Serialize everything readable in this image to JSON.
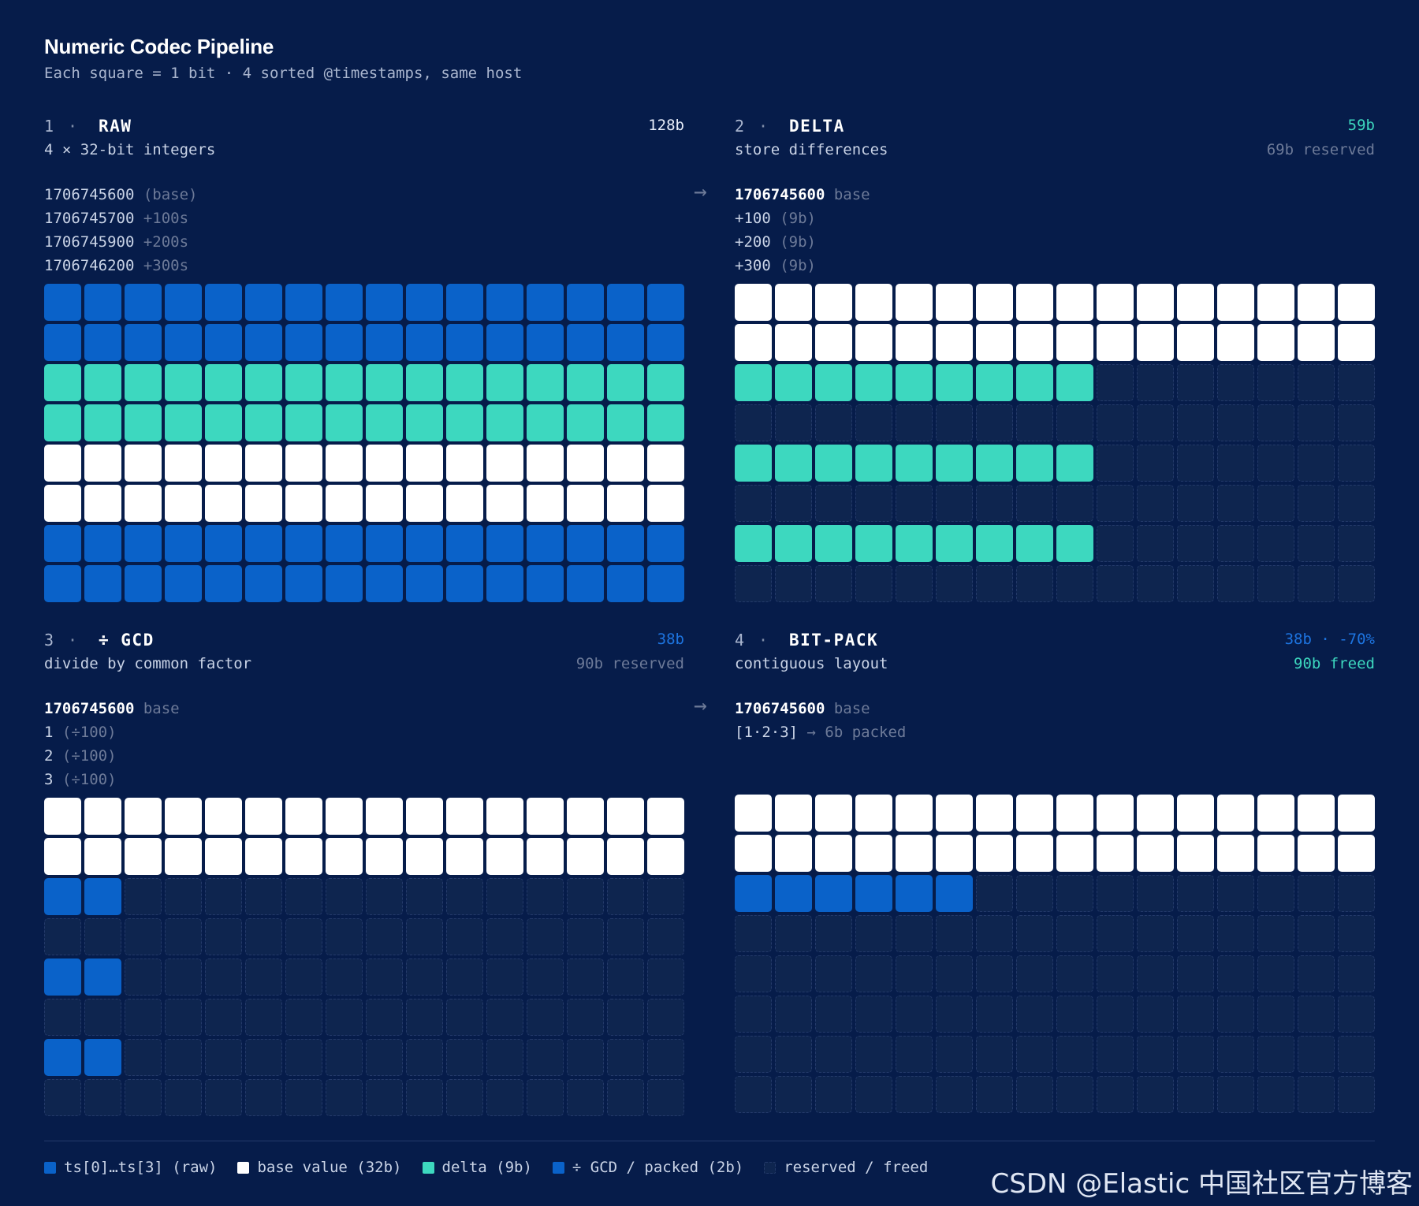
{
  "title": "Numeric Codec Pipeline",
  "subtitle": "Each square = 1 bit · 4 sorted @timestamps, same host",
  "colors": {
    "raw": "#0a62c9",
    "base": "#ffffff",
    "delta": "#3dd8bf",
    "gcd": "#0a62c9",
    "reserved_fill": "#0e254f",
    "reserved_border": "#243a6a",
    "background": "#061c4a"
  },
  "panels": [
    {
      "num": "1",
      "dot": "·",
      "name": "RAW",
      "desc": "4 × 32-bit integers",
      "bits": "128b",
      "bits_color": "#e8eefb",
      "note": "",
      "note_color": "#6d7a98",
      "values": [
        {
          "main": "1706745600",
          "extra": " (base)",
          "style": "v-main"
        },
        {
          "main": "1706745700",
          "extra": " +100s",
          "style": "v-main"
        },
        {
          "main": "1706745900",
          "extra": " +200s",
          "style": "v-main"
        },
        {
          "main": "1706746200",
          "extra": " +300s",
          "style": "v-main"
        }
      ],
      "rows": [
        {
          "kind": "raw",
          "count": 16
        },
        {
          "kind": "raw",
          "count": 16
        },
        {
          "kind": "delta",
          "count": 16
        },
        {
          "kind": "delta",
          "count": 16
        },
        {
          "kind": "base",
          "count": 16
        },
        {
          "kind": "base",
          "count": 16
        },
        {
          "kind": "raw",
          "count": 16
        },
        {
          "kind": "raw",
          "count": 16
        }
      ]
    },
    {
      "num": "2",
      "dot": "·",
      "name": "DELTA",
      "desc": "store differences",
      "bits": "59b",
      "bits_color": "#3dd8bf",
      "note": "69b reserved",
      "note_color": "#6d7a98",
      "values": [
        {
          "main": "1706745600",
          "extra": " base",
          "style": "v-bold"
        },
        {
          "main": "+100",
          "extra": " (9b)",
          "style": "v-main"
        },
        {
          "main": "+200",
          "extra": " (9b)",
          "style": "v-main"
        },
        {
          "main": "+300",
          "extra": " (9b)",
          "style": "v-main"
        }
      ],
      "rows": [
        {
          "kind": "base",
          "count": 16
        },
        {
          "kind": "base",
          "count": 16
        },
        {
          "kind": "delta",
          "count": 9
        },
        {
          "kind": "delta",
          "count": 0
        },
        {
          "kind": "delta",
          "count": 9
        },
        {
          "kind": "delta",
          "count": 0
        },
        {
          "kind": "delta",
          "count": 9
        },
        {
          "kind": "delta",
          "count": 0
        }
      ]
    },
    {
      "num": "3",
      "dot": "·",
      "name": "÷ GCD",
      "desc": "divide by common factor",
      "bits": "38b",
      "bits_color": "#1d74e0",
      "note": "90b reserved",
      "note_color": "#6d7a98",
      "values": [
        {
          "main": "1706745600",
          "extra": " base",
          "style": "v-bold"
        },
        {
          "main": "1",
          "extra": " (÷100)",
          "style": "v-main"
        },
        {
          "main": "2",
          "extra": " (÷100)",
          "style": "v-main"
        },
        {
          "main": "3",
          "extra": " (÷100)",
          "style": "v-main"
        }
      ],
      "rows": [
        {
          "kind": "base",
          "count": 16
        },
        {
          "kind": "base",
          "count": 16
        },
        {
          "kind": "gcd",
          "count": 2
        },
        {
          "kind": "gcd",
          "count": 0
        },
        {
          "kind": "gcd",
          "count": 2
        },
        {
          "kind": "gcd",
          "count": 0
        },
        {
          "kind": "gcd",
          "count": 2
        },
        {
          "kind": "gcd",
          "count": 0
        }
      ]
    },
    {
      "num": "4",
      "dot": "·",
      "name": "BIT-PACK",
      "desc": "contiguous layout",
      "bits": "38b · -70%",
      "bits_color": "#1d74e0",
      "note": "90b freed",
      "note_color": "#3dd8bf",
      "values": [
        {
          "main": "1706745600",
          "extra": " base",
          "style": "v-bold"
        },
        {
          "main": "[1·2·3]",
          "extra": " → 6b packed",
          "style": "v-main"
        }
      ],
      "rows": [
        {
          "kind": "base",
          "count": 16
        },
        {
          "kind": "base",
          "count": 16
        },
        {
          "kind": "gcd",
          "count": 6
        },
        {
          "kind": "gcd",
          "count": 0
        },
        {
          "kind": "gcd",
          "count": 0
        },
        {
          "kind": "gcd",
          "count": 0
        },
        {
          "kind": "gcd",
          "count": 0
        },
        {
          "kind": "gcd",
          "count": 0
        }
      ]
    }
  ],
  "arrows": [
    "→",
    "→"
  ],
  "legend": [
    {
      "label": "ts[0]…ts[3] (raw)",
      "swatch": "raw"
    },
    {
      "label": "base value (32b)",
      "swatch": "base"
    },
    {
      "label": "delta (9b)",
      "swatch": "delta"
    },
    {
      "label": "÷ GCD / packed (2b)",
      "swatch": "gcd"
    },
    {
      "label": "reserved / freed",
      "swatch": "reserved"
    }
  ],
  "watermark": "CSDN @Elastic 中国社区官方博客"
}
